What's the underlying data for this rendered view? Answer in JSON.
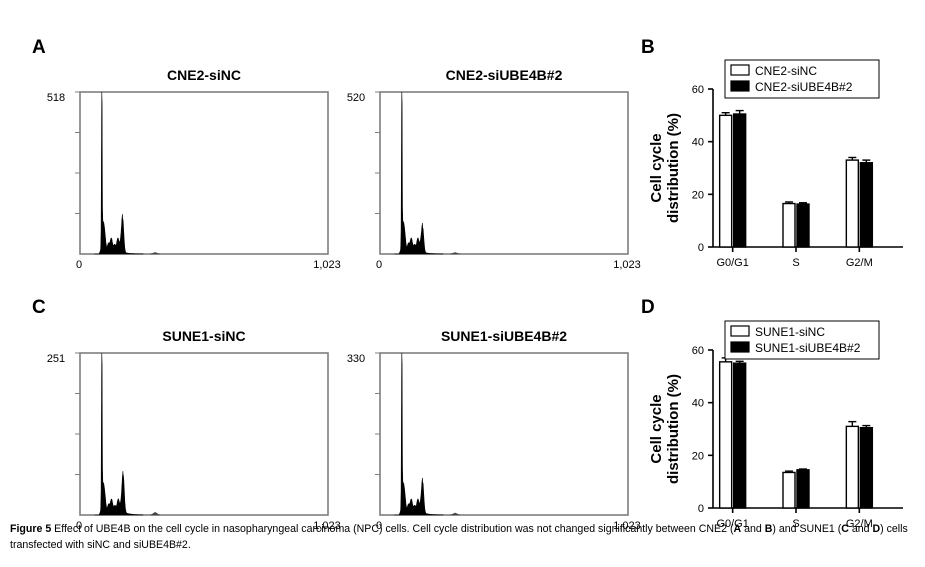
{
  "panel_letters": [
    "A",
    "B",
    "C",
    "D"
  ],
  "chart_data": [
    {
      "type": "histogram",
      "panel": "A",
      "title": "CNE2-siNC",
      "ymax_label": "518",
      "x_tick_labels": [
        "0",
        "1,023"
      ],
      "xlim": [
        0,
        1023
      ],
      "ylim": [
        0,
        518
      ],
      "profile": {
        "g1_peak_channel": 90,
        "g1_height": 518,
        "g2_peak_channel": 176,
        "g2_height": 120,
        "debris_level": 6
      }
    },
    {
      "type": "histogram",
      "panel": "A",
      "title": "CNE2-siUBE4B#2",
      "ymax_label": "520",
      "x_tick_labels": [
        "0",
        "1,023"
      ],
      "xlim": [
        0,
        1023
      ],
      "ylim": [
        0,
        520
      ],
      "profile": {
        "g1_peak_channel": 90,
        "g1_height": 520,
        "g2_peak_channel": 176,
        "g2_height": 88,
        "debris_level": 6
      }
    },
    {
      "type": "bar",
      "panel": "B",
      "categories": [
        "G0/G1",
        "S",
        "G2/M"
      ],
      "series": [
        {
          "name": "CNE2-siNC",
          "values": [
            50,
            16.5,
            33
          ],
          "errors": [
            1,
            0.6,
            1
          ],
          "color": "#ffffff"
        },
        {
          "name": "CNE2-siUBE4B#2",
          "values": [
            50.5,
            16.3,
            32
          ],
          "errors": [
            1.3,
            0.5,
            1
          ],
          "color": "#000000"
        }
      ],
      "ylabel": "Cell cycle distribution (%)",
      "ylim": [
        0,
        60
      ],
      "y_ticks": [
        0,
        20,
        40,
        60
      ],
      "legend": "top-right"
    },
    {
      "type": "histogram",
      "panel": "C",
      "title": "SUNE1-siNC",
      "ymax_label": "251",
      "x_tick_labels": [
        "0",
        "1,023"
      ],
      "xlim": [
        0,
        1023
      ],
      "ylim": [
        0,
        251
      ],
      "profile": {
        "g1_peak_channel": 90,
        "g1_height": 251,
        "g2_peak_channel": 178,
        "g2_height": 65,
        "debris_level": 5
      }
    },
    {
      "type": "histogram",
      "panel": "C",
      "title": "SUNE1-siUBE4B#2",
      "ymax_label": "330",
      "x_tick_labels": [
        "0",
        "1,023"
      ],
      "xlim": [
        0,
        1023
      ],
      "ylim": [
        0,
        330
      ],
      "profile": {
        "g1_peak_channel": 90,
        "g1_height": 330,
        "g2_peak_channel": 176,
        "g2_height": 70,
        "debris_level": 5
      }
    },
    {
      "type": "bar",
      "panel": "D",
      "categories": [
        "G0/G1",
        "S",
        "G2/M"
      ],
      "series": [
        {
          "name": "SUNE1-siNC",
          "values": [
            55.5,
            13.5,
            31
          ],
          "errors": [
            1.5,
            0.5,
            1.8
          ],
          "color": "#ffffff"
        },
        {
          "name": "SUNE1-siUBE4B#2",
          "values": [
            55,
            14.5,
            30.5
          ],
          "errors": [
            0.7,
            0.3,
            0.8
          ],
          "color": "#000000"
        }
      ],
      "ylabel": "Cell cycle distribution (%)",
      "ylim": [
        0,
        60
      ],
      "y_ticks": [
        0,
        20,
        40,
        60
      ],
      "legend": "top-right"
    }
  ],
  "caption": {
    "label": "Figure 5",
    "text_1": " Effect of UBE4B on the cell cycle in nasopharyngeal carcinoma (NPC) cells. Cell cycle distribution was not changed significantly between CNE2 (",
    "bold_A": "A",
    "and_1": " and ",
    "bold_B": "B",
    "text_2": ") and SUNE1 (",
    "bold_C": "C",
    "and_2": " and ",
    "bold_D": "D",
    "text_3": ") cells transfected with siNC and siUBE4B#2."
  }
}
